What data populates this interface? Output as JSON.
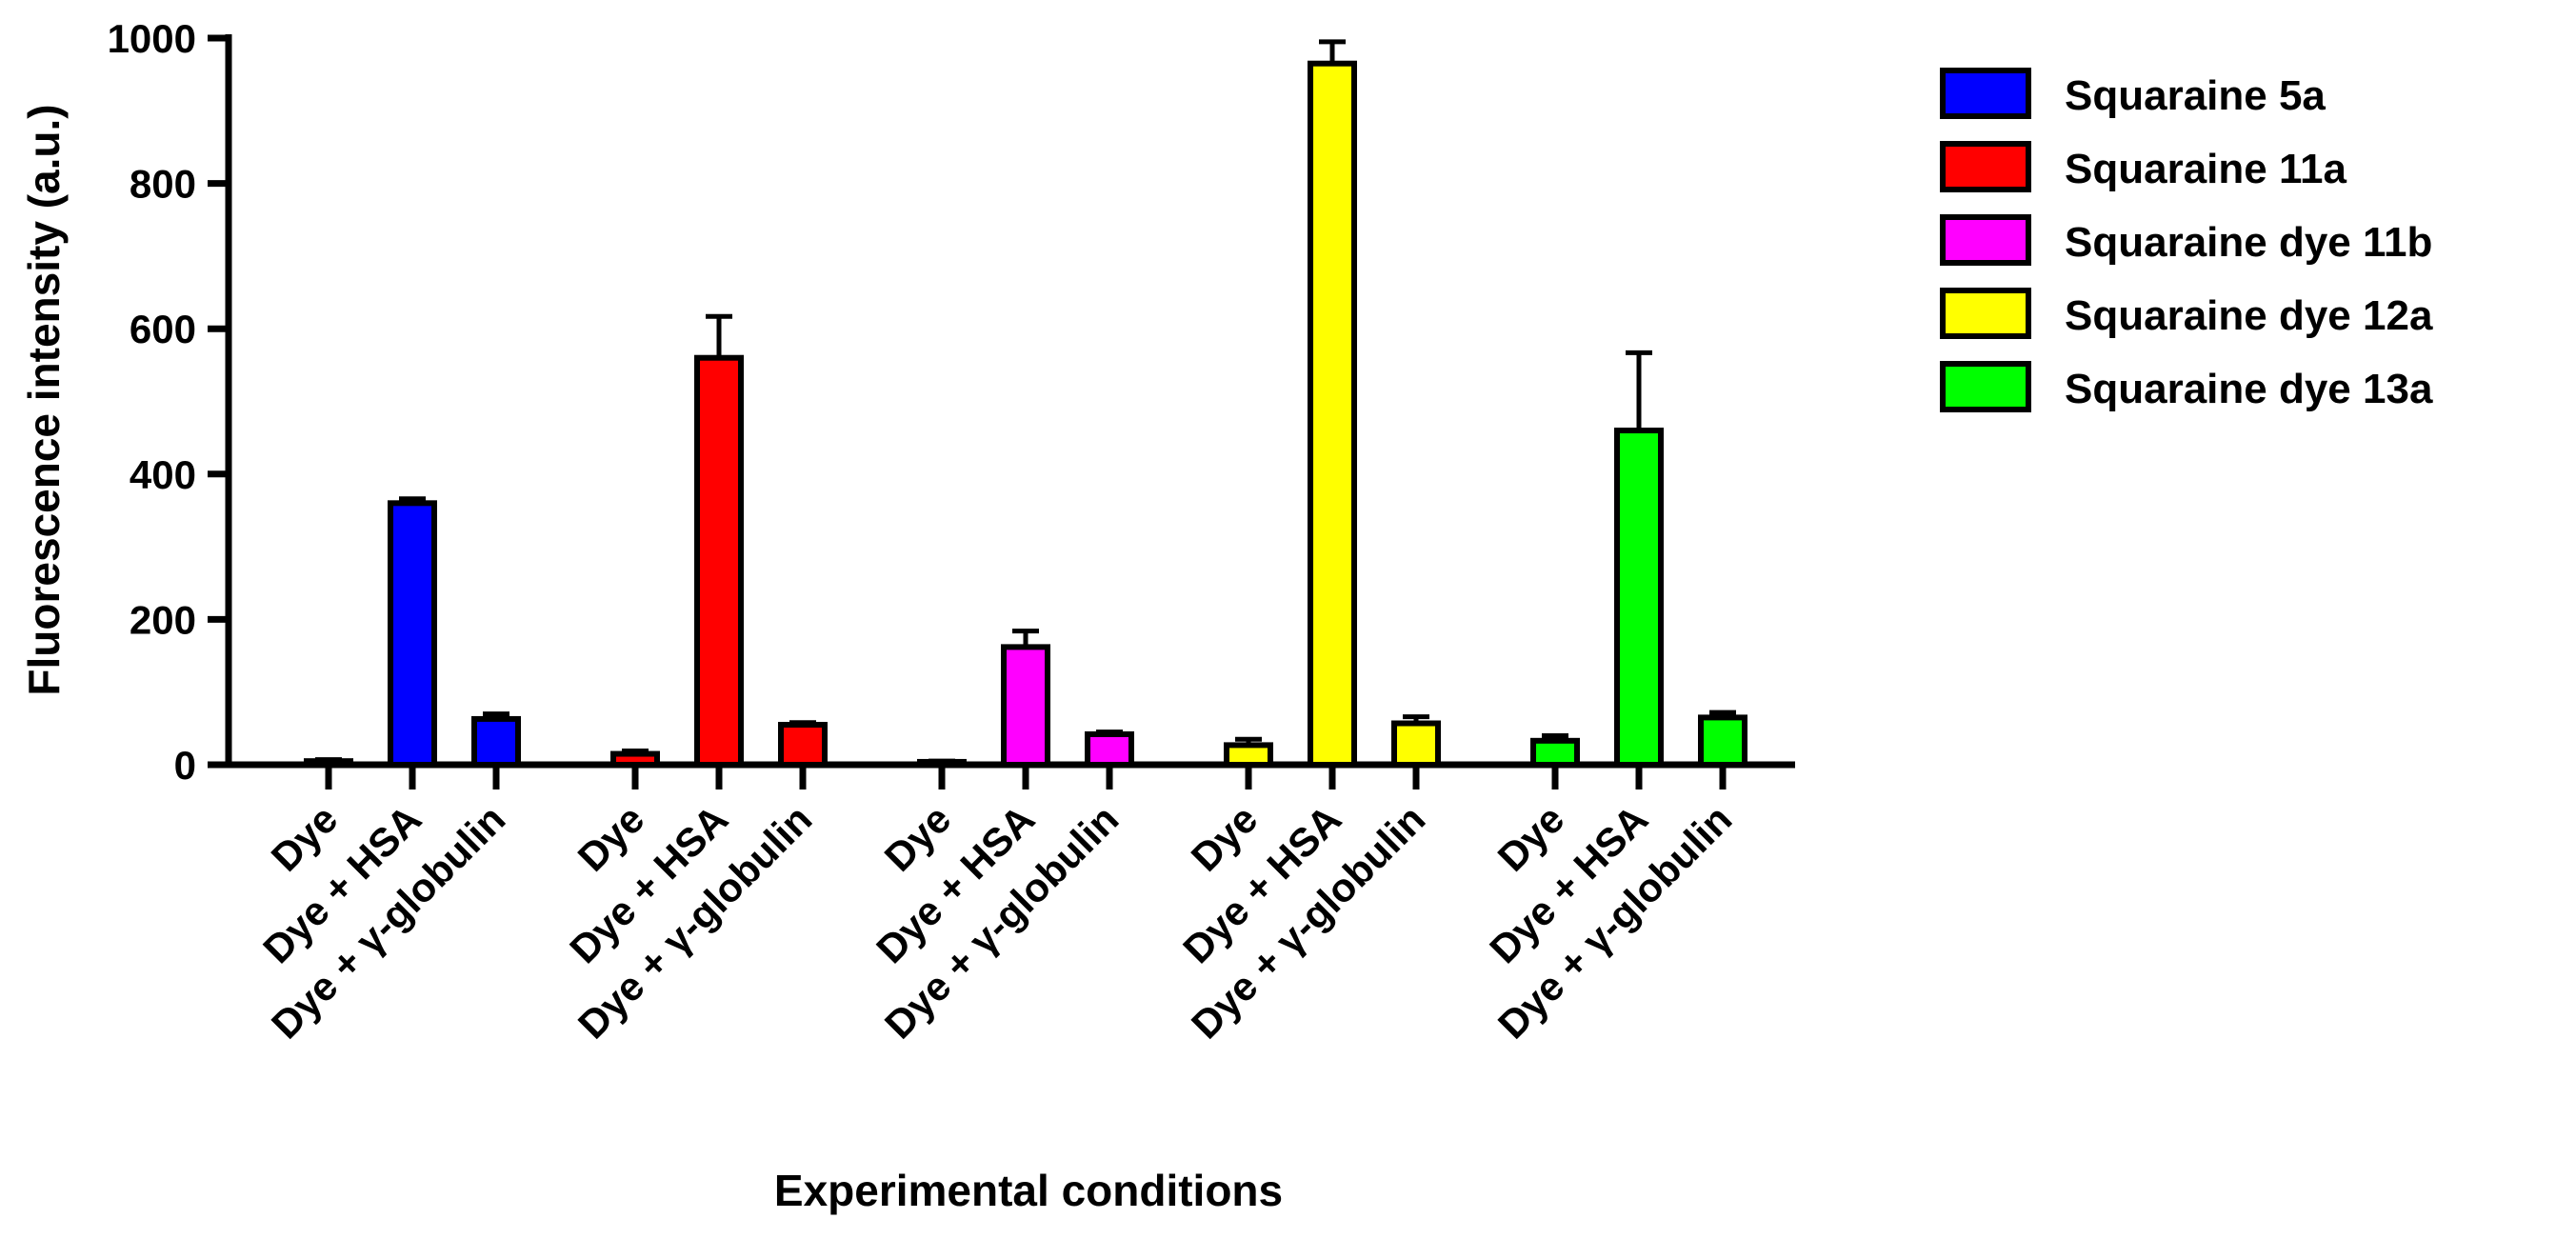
{
  "chart_data": {
    "type": "bar",
    "title": "",
    "xlabel": "Experimental conditions",
    "ylabel": "Fluorescence intensity (a.u.)",
    "ylim": [
      0,
      1000
    ],
    "yticks": [
      0,
      200,
      400,
      600,
      800,
      1000
    ],
    "categories": [
      "Dye",
      "Dye + HSA",
      "Dye + γ-globulin"
    ],
    "series": [
      {
        "name": "Squaraine 5a",
        "color": "#0000ff",
        "values": [
          5,
          360,
          63
        ],
        "errors": [
          2,
          6,
          7
        ]
      },
      {
        "name": "Squaraine 11a",
        "color": "#ff0000",
        "values": [
          15,
          560,
          55
        ],
        "errors": [
          4,
          57,
          3
        ]
      },
      {
        "name": "Squaraine dye 11b",
        "color": "#ff00ff",
        "values": [
          4,
          162,
          42
        ],
        "errors": [
          1,
          22,
          3
        ]
      },
      {
        "name": "Squaraine dye 12a",
        "color": "#ffff00",
        "values": [
          27,
          965,
          57
        ],
        "errors": [
          8,
          30,
          9
        ]
      },
      {
        "name": "Squaraine dye 13a",
        "color": "#00ff00",
        "values": [
          33,
          460,
          65
        ],
        "errors": [
          7,
          107,
          7
        ]
      }
    ],
    "legend_position": "right"
  }
}
